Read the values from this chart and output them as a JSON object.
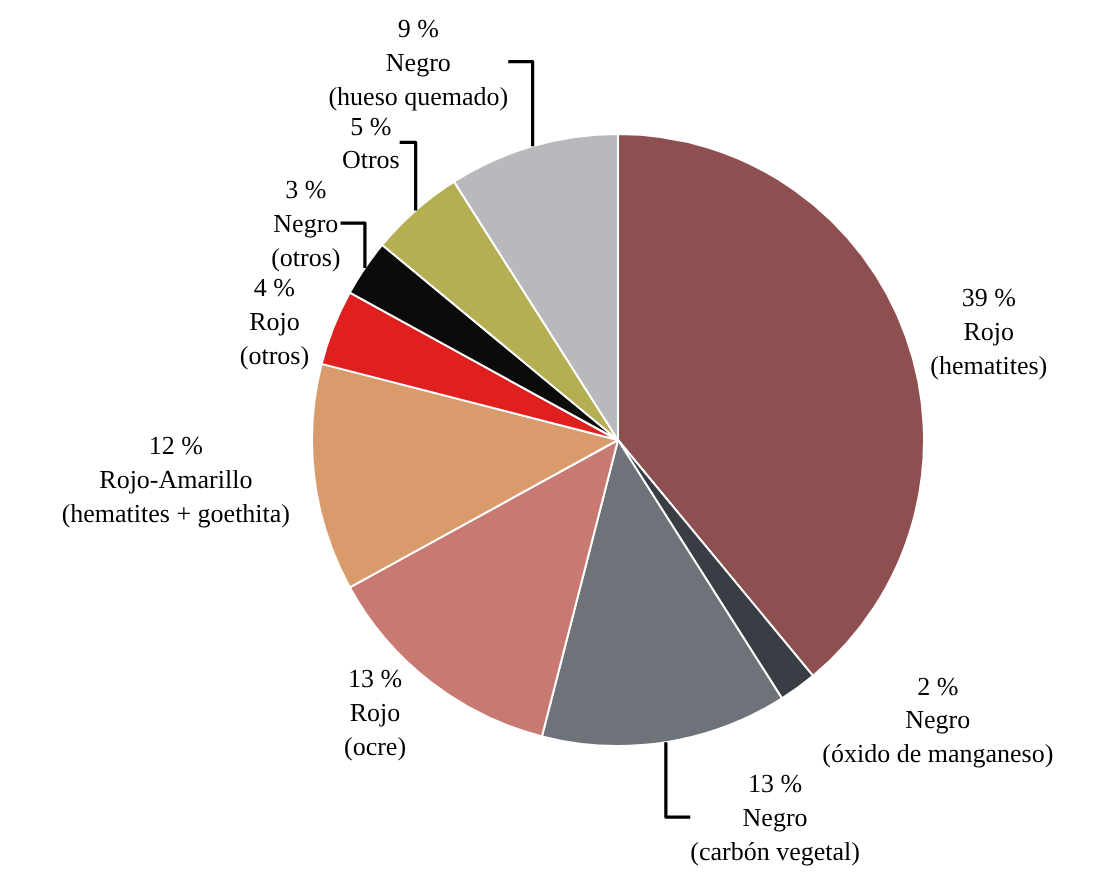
{
  "chart_data": {
    "type": "pie",
    "categories": [
      "Rojo (hematites)",
      "Negro (óxido de manganeso)",
      "Negro (carbón vegetal)",
      "Rojo (ocre)",
      "Rojo-Amarillo (hematites + goethita)",
      "Rojo (otros)",
      "Negro (otros)",
      "Otros",
      "Negro (hueso quemado)"
    ],
    "values": [
      39,
      2,
      13,
      13,
      12,
      4,
      3,
      5,
      9
    ],
    "value_labels": [
      "39 %",
      "2 %",
      "13 %",
      "13 %",
      "12 %",
      "4 %",
      "3 %",
      "5 %",
      "9 %"
    ],
    "colors": [
      "#8e4f50",
      "#383e44",
      "#6d7378",
      "#c87a72",
      "#d99b6c",
      "#e0201e",
      "#0b0b0b",
      "#b3af52",
      "#b9b9bd"
    ],
    "legend": false
  }
}
